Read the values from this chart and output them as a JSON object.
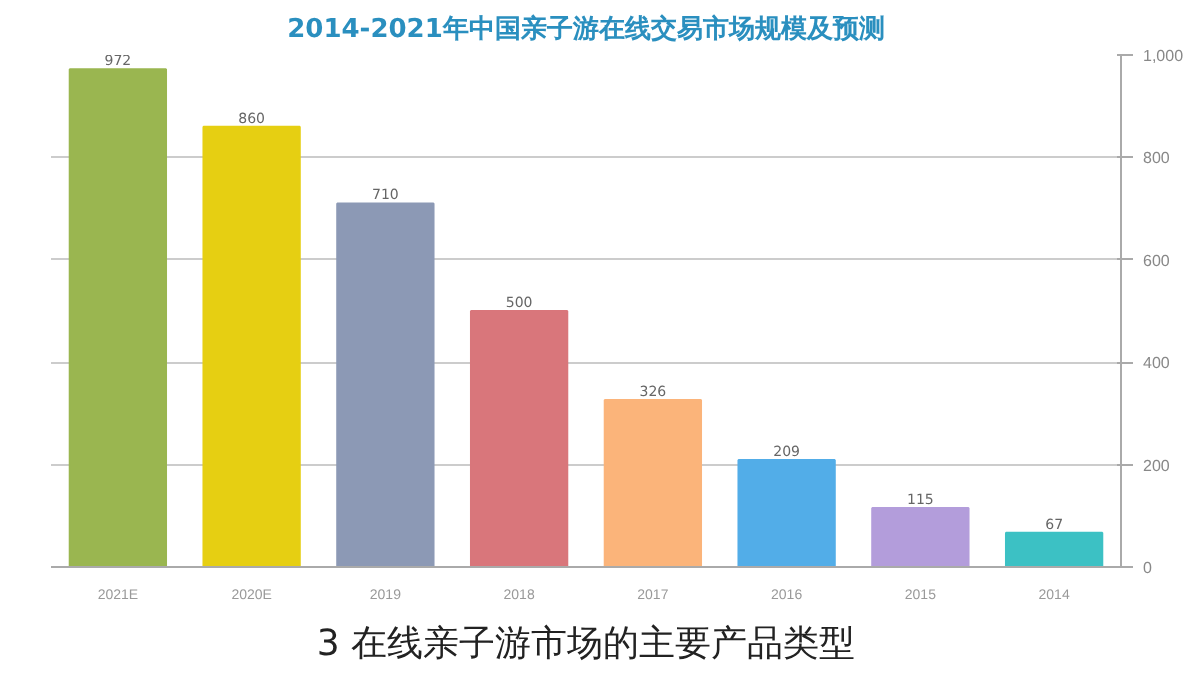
{
  "chart_data": {
    "type": "bar",
    "title": "2014-2021年中国亲子游在线交易市场规模及预测",
    "categories": [
      "2021E",
      "2020E",
      "2019",
      "2018",
      "2017",
      "2016",
      "2015",
      "2014"
    ],
    "values": [
      972,
      860,
      710,
      500,
      326,
      209,
      115,
      67
    ],
    "colors": [
      "#9ab650",
      "#e6cf12",
      "#8c99b5",
      "#d9767b",
      "#fbb47a",
      "#52ade8",
      "#b39ddb",
      "#3cc1c4"
    ],
    "ylim": [
      0,
      1000
    ],
    "yticks": [
      0,
      200,
      400,
      600,
      800,
      {
        "value": 1000,
        "label": "1,000"
      }
    ],
    "grid": "y",
    "data_labels": true,
    "annotations": [
      "3 在线亲子游市场的主要产品类型"
    ]
  }
}
